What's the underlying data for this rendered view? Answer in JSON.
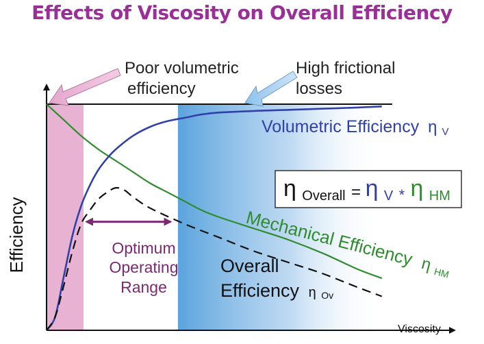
{
  "chart_data": {
    "type": "line",
    "title": "Effects of Viscosity on Overall Efficiency",
    "xlabel": "Viscosity",
    "ylabel": "Efficiency",
    "xlim": [
      0,
      10
    ],
    "ylim": [
      0,
      1
    ],
    "grid": false,
    "series": [
      {
        "name": "Volumetric Efficiency",
        "symbol": "ηV",
        "color": "#3040a8",
        "style": "solid",
        "x": [
          0,
          0.25,
          0.5,
          0.75,
          1.0,
          1.25,
          1.5,
          1.75,
          2.0,
          2.5,
          3.0,
          3.5,
          4.0,
          4.5,
          5.0,
          6.0,
          7.0,
          8.0,
          9.0,
          9.7
        ],
        "values": [
          0.0,
          0.06,
          0.24,
          0.42,
          0.55,
          0.64,
          0.71,
          0.76,
          0.8,
          0.86,
          0.9,
          0.925,
          0.94,
          0.955,
          0.963,
          0.97,
          0.975,
          0.98,
          0.985,
          0.99
        ]
      },
      {
        "name": "Mechanical Efficiency",
        "symbol": "ηHM",
        "color": "#2e8b2e",
        "style": "solid",
        "x": [
          0,
          0.5,
          1.0,
          1.5,
          2.0,
          2.5,
          3.0,
          3.5,
          4.0,
          4.5,
          5.0,
          6.0,
          7.0,
          8.0,
          9.0,
          9.7
        ],
        "values": [
          1.0,
          0.93,
          0.86,
          0.8,
          0.75,
          0.7,
          0.65,
          0.61,
          0.57,
          0.53,
          0.5,
          0.45,
          0.4,
          0.34,
          0.27,
          0.23
        ]
      },
      {
        "name": "Overall Efficiency",
        "symbol": "ηOv",
        "color": "#111111",
        "style": "dashed",
        "x": [
          0,
          0.25,
          0.5,
          0.75,
          1.0,
          1.25,
          1.5,
          1.75,
          2.0,
          2.25,
          2.5,
          3.0,
          4.0,
          5.0,
          6.0,
          7.0,
          8.0,
          9.0,
          9.7
        ],
        "values": [
          0.0,
          0.06,
          0.2,
          0.35,
          0.47,
          0.53,
          0.58,
          0.61,
          0.63,
          0.62,
          0.59,
          0.54,
          0.47,
          0.41,
          0.35,
          0.3,
          0.25,
          0.19,
          0.15
        ]
      }
    ],
    "regions": [
      {
        "name": "poor-volumetric",
        "x_range": [
          0,
          1.07
        ],
        "color": "#e8b2d2",
        "label": "Poor volumetric efficiency"
      },
      {
        "name": "high-frictional",
        "x_range": [
          3.8,
          9.7
        ],
        "color": "#5ba4dd",
        "label": "High frictional losses"
      }
    ],
    "optimum_range": {
      "x_range": [
        1.15,
        3.75
      ],
      "y": 0.48,
      "label_line1": "Optimum",
      "label_line2": "Operating",
      "label_line3": "Range",
      "color": "#7b2a70"
    },
    "reference_line_y": 1.0,
    "callouts": {
      "poor_line1": "Poor volumetric",
      "poor_line2": "efficiency",
      "high_line1": "High frictional",
      "high_line2": "losses"
    },
    "labels": {
      "volumetric_text": "Volumetric Efficiency",
      "volumetric_sym": "η",
      "volumetric_sub": "V",
      "mechanical_text": "Mechanical Efficiency",
      "mechanical_sym": "η",
      "mechanical_sub": "HM",
      "overall_line1": "Overall",
      "overall_line2": "Efficiency",
      "overall_sym": "η",
      "overall_sub": "Ov"
    },
    "formula": {
      "eta1": "η",
      "sub1": "Overall",
      "equals": " = ",
      "eta2": "η",
      "sub2": "V",
      "star": "*",
      "eta3": "η",
      "sub3": "HM"
    }
  },
  "colors": {
    "title": "#9b2f98",
    "volumetric": "#3040a8",
    "mechanical": "#2e8b2e",
    "overall": "#111111",
    "optimum": "#7b2a70"
  }
}
